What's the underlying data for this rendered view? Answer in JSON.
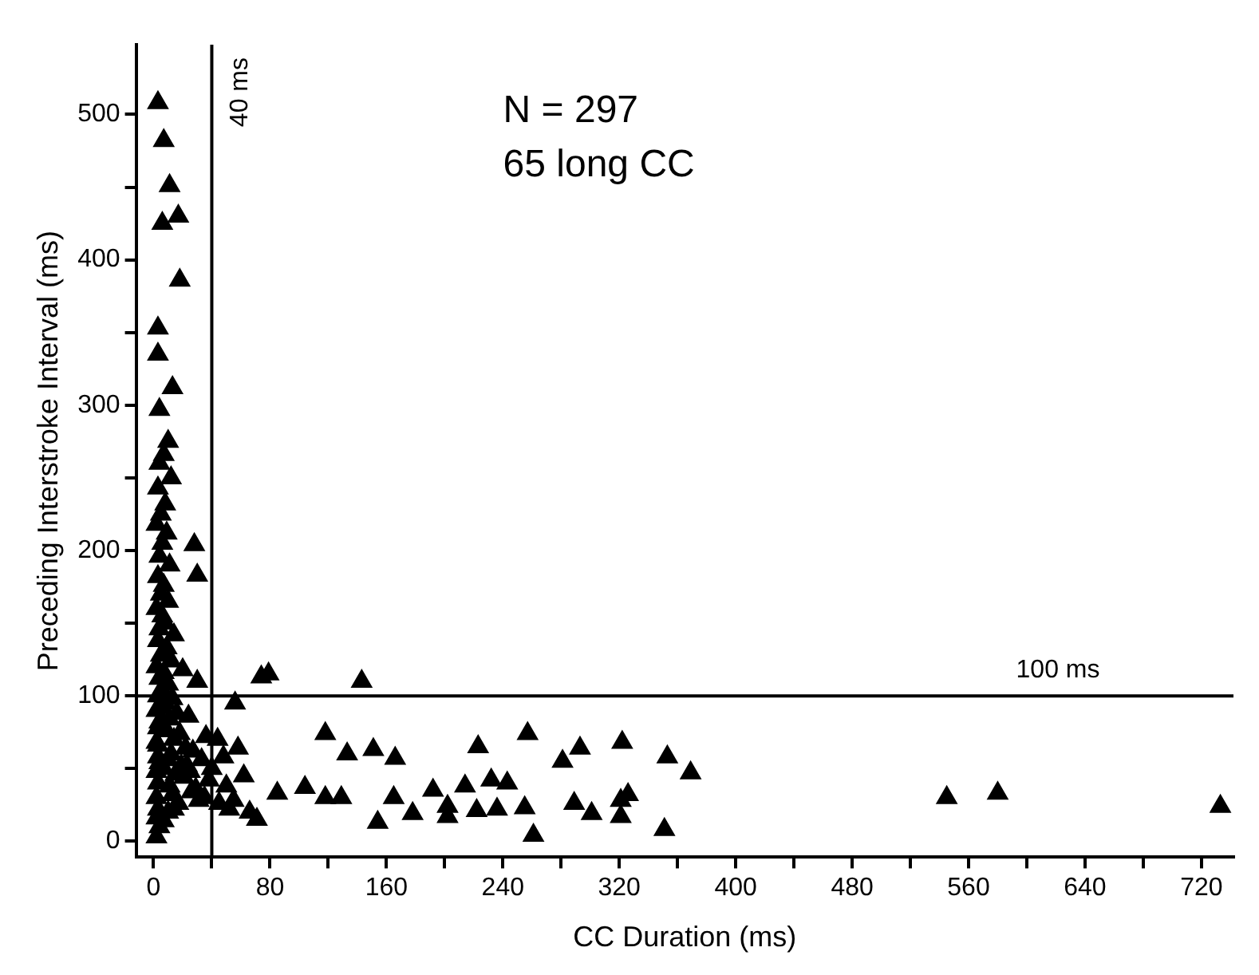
{
  "chart_data": {
    "type": "scatter",
    "xlabel": "CC Duration (ms)",
    "ylabel": "Preceding Interstroke Interval (ms)",
    "annotations": [
      "N = 297",
      "65 long CC"
    ],
    "x": [
      3,
      7,
      11,
      17,
      6,
      18,
      3,
      3,
      13,
      4,
      10,
      7,
      4,
      12,
      3,
      8,
      5,
      2,
      9,
      6,
      28,
      30,
      4,
      11,
      3,
      7,
      5,
      10,
      2,
      6,
      8,
      4,
      14,
      3,
      9,
      5,
      12,
      2,
      7,
      20,
      4,
      10,
      6,
      3,
      13,
      8,
      5,
      2,
      16,
      24,
      11,
      4,
      30,
      3,
      9,
      18,
      14,
      2,
      36,
      22,
      12,
      3,
      27,
      10,
      4,
      19,
      7,
      33,
      2,
      15,
      25,
      3,
      38,
      11,
      21,
      13,
      2,
      29,
      17,
      35,
      3,
      10,
      26,
      2,
      14,
      31,
      7,
      4,
      2,
      23,
      3,
      56,
      74,
      79,
      143,
      118,
      133,
      151,
      166,
      154,
      71,
      104,
      85,
      118,
      129,
      178,
      165,
      44,
      50,
      62,
      48,
      55,
      66,
      45,
      58,
      40,
      52,
      223,
      257,
      281,
      293,
      322,
      353,
      369,
      192,
      202,
      202,
      214,
      222,
      232,
      243,
      236,
      255,
      261,
      289,
      301,
      321,
      326,
      321,
      351,
      545,
      580,
      733
    ],
    "values": [
      508,
      482,
      451,
      430,
      425,
      386,
      353,
      335,
      312,
      297,
      275,
      266,
      260,
      250,
      243,
      232,
      225,
      218,
      212,
      205,
      204,
      183,
      196,
      190,
      182,
      176,
      170,
      165,
      160,
      155,
      150,
      146,
      142,
      138,
      133,
      128,
      124,
      120,
      116,
      118,
      112,
      108,
      104,
      100,
      98,
      95,
      92,
      90,
      88,
      86,
      84,
      82,
      110,
      78,
      76,
      74,
      70,
      68,
      72,
      64,
      60,
      58,
      62,
      56,
      54,
      52,
      50,
      56,
      48,
      46,
      48,
      40,
      42,
      38,
      44,
      32,
      30,
      36,
      26,
      30,
      22,
      20,
      34,
      16,
      22,
      28,
      14,
      10,
      3,
      52,
      66,
      95,
      113,
      115,
      110,
      74,
      60,
      63,
      57,
      13,
      15,
      37,
      33,
      30,
      30,
      19,
      30,
      70,
      38,
      45,
      58,
      28,
      20,
      26,
      64,
      50,
      22,
      65,
      74,
      55,
      64,
      68,
      58,
      47,
      35,
      24,
      17,
      38,
      21,
      42,
      40,
      22,
      23,
      4,
      26,
      19,
      28,
      32,
      17,
      8,
      30,
      33,
      24
    ],
    "color": "#000000",
    "marker": "triangle",
    "legend": false,
    "grid": false,
    "xlim": [
      -12,
      742
    ],
    "ylim": [
      -11,
      548
    ],
    "xticks": [
      0,
      {
        "value": 40,
        "label": null
      },
      80,
      {
        "value": 120,
        "label": null
      },
      160,
      {
        "value": 200,
        "label": null
      },
      240,
      {
        "value": 280,
        "label": null
      },
      320,
      {
        "value": 360,
        "label": null
      },
      400,
      {
        "value": 440,
        "label": null
      },
      480,
      {
        "value": 520,
        "label": null
      },
      560,
      {
        "value": 600,
        "label": null
      },
      640,
      {
        "value": 680,
        "label": null
      },
      720
    ],
    "yticks": [
      0,
      {
        "value": 50,
        "label": null
      },
      100,
      {
        "value": 150,
        "label": null
      },
      200,
      {
        "value": 250,
        "label": null
      },
      300,
      {
        "value": 350,
        "label": null
      },
      400,
      {
        "value": 450,
        "label": null
      },
      500
    ],
    "ref_lines": [
      {
        "axis": "x",
        "value": 40,
        "label": "40 ms",
        "color": "#000000"
      },
      {
        "axis": "y",
        "value": 100,
        "label": "100 ms",
        "color": "#000000"
      }
    ]
  }
}
